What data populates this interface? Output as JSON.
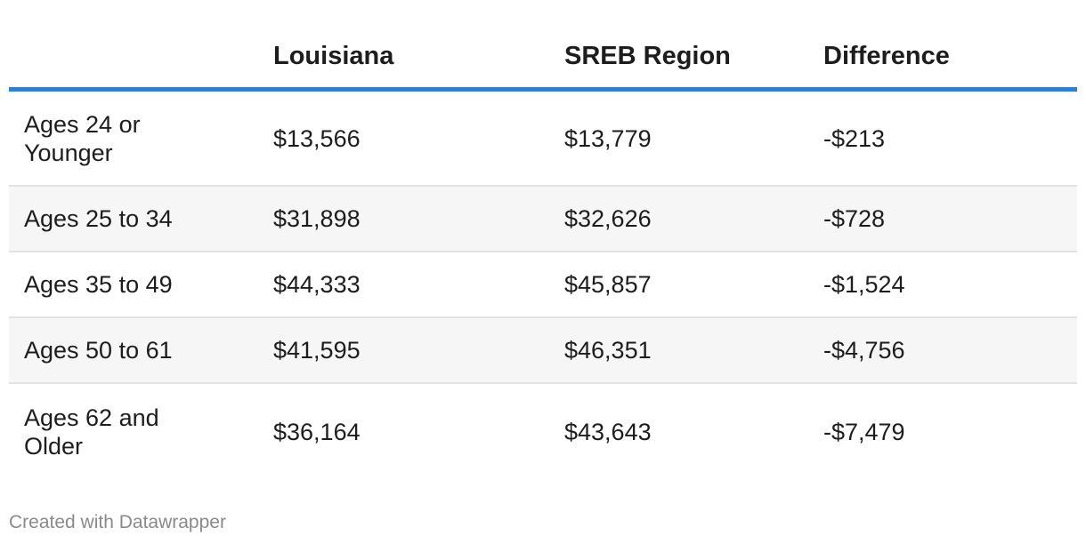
{
  "chart_data": {
    "type": "table",
    "columns": [
      "",
      "Louisiana",
      "SREB Region",
      "Difference"
    ],
    "rows": [
      {
        "label": "Ages 24 or Younger",
        "louisiana": "$13,566",
        "sreb": "$13,779",
        "difference": "-$213"
      },
      {
        "label": "Ages 25 to 34",
        "louisiana": "$31,898",
        "sreb": "$32,626",
        "difference": "-$728"
      },
      {
        "label": "Ages 35 to 49",
        "louisiana": "$44,333",
        "sreb": "$45,857",
        "difference": "-$1,524"
      },
      {
        "label": "Ages 50 to 61",
        "louisiana": "$41,595",
        "sreb": "$46,351",
        "difference": "-$4,756"
      },
      {
        "label": "Ages 62 and Older",
        "louisiana": "$36,164",
        "sreb": "$43,643",
        "difference": "-$7,479"
      }
    ],
    "header_rule_color": "#2f7fd9",
    "stripe_color": "#f6f6f6"
  },
  "footer": {
    "credit": "Created with Datawrapper"
  }
}
